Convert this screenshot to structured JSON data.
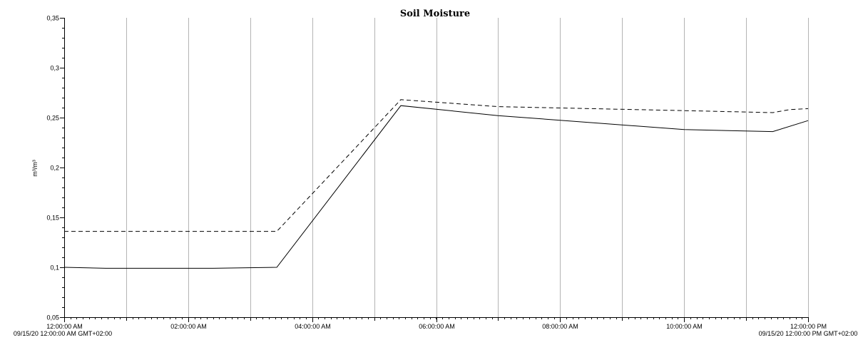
{
  "chart_data": {
    "type": "line",
    "title": "Soil Moisture",
    "ylabel": "m³/m³",
    "xlabel": "",
    "ylim": [
      0.05,
      0.35
    ],
    "y_ticks": [
      0.05,
      0.1,
      0.15,
      0.2,
      0.25,
      0.3,
      0.35
    ],
    "y_tick_labels": [
      "0,05",
      "0,1",
      "0,15",
      "0,2",
      "0,25",
      "0,3",
      "0,35"
    ],
    "xlim": [
      0,
      12
    ],
    "x_unit": "hours after 09/15/20 12:00:00 AM GMT+02:00",
    "x_ticks": [
      0,
      2,
      4,
      6,
      8,
      10,
      12
    ],
    "x_tick_labels": [
      "12:00:00 AM",
      "02:00:00 AM",
      "04:00:00 AM",
      "06:00:00 AM",
      "08:00:00 AM",
      "10:00:00 AM",
      "12:00:00 PM"
    ],
    "x_minor_ticks": [
      1,
      3,
      5,
      7,
      9,
      11
    ],
    "range_start_label": "09/15/20 12:00:00 AM GMT+02:00",
    "range_end_label": "09/15/20 12:00:00 PM GMT+02:00",
    "grid": true,
    "legend": "none",
    "series": [
      {
        "style": "solid",
        "color": "#000000",
        "x": [
          0,
          0.67,
          2.4,
          3.43,
          5.43,
          7.0,
          10.0,
          11.43,
          12.0
        ],
        "y": [
          0.1,
          0.099,
          0.099,
          0.1,
          0.262,
          0.252,
          0.238,
          0.236,
          0.247
        ]
      },
      {
        "style": "dashed",
        "color": "#000000",
        "x": [
          0,
          3.43,
          5.43,
          7.0,
          10.0,
          11.43,
          11.7,
          12.0
        ],
        "y": [
          0.136,
          0.136,
          0.268,
          0.261,
          0.257,
          0.255,
          0.258,
          0.259
        ]
      }
    ]
  }
}
